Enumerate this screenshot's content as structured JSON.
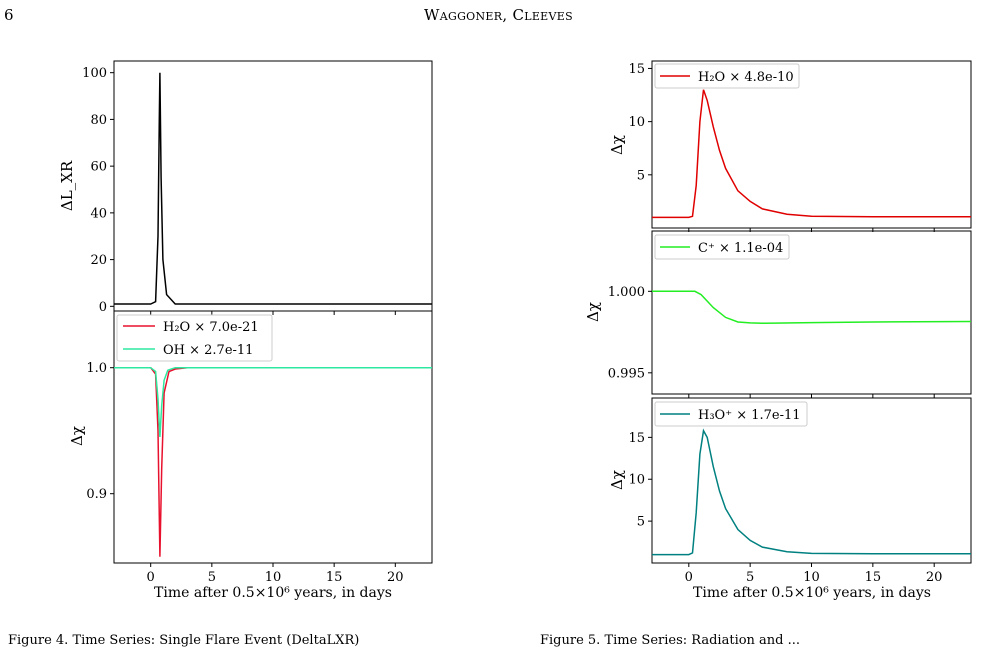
{
  "header": {
    "page_number": "6",
    "running_title": "Waggoner, Cleeves"
  },
  "figure_left": {
    "xlabel": "Time after 0.5×10⁶ years, in days",
    "top": {
      "ylabel": "ΔL_XR",
      "yticks": [
        "0",
        "20",
        "40",
        "60",
        "80",
        "100"
      ]
    },
    "bottom": {
      "ylabel": "Δχ",
      "yticks": [
        "0.9",
        "1.0"
      ],
      "legend": [
        "H₂O × 7.0e-21",
        "OH × 2.7e-11"
      ]
    },
    "xticks": [
      "0",
      "5",
      "10",
      "15",
      "20"
    ]
  },
  "figure_right": {
    "xlabel": "Time after 0.5×10⁶ years, in days",
    "xticks": [
      "0",
      "5",
      "10",
      "15",
      "20"
    ],
    "panel1": {
      "ylabel": "Δχ",
      "yticks": [
        "5",
        "10",
        "15"
      ],
      "legend": "H₂O × 4.8e-10"
    },
    "panel2": {
      "ylabel": "Δχ",
      "yticks": [
        "0.995",
        "1.000"
      ],
      "legend": "C⁺ × 1.1e-04"
    },
    "panel3": {
      "ylabel": "Δχ",
      "yticks": [
        "5",
        "10",
        "15"
      ],
      "legend": "H₃O⁺ × 1.7e-11"
    }
  },
  "captions": {
    "left": "Figure 4. Time Series: Single Flare Event (DeltaLXR)",
    "right": "Figure 5. Time Series: Radiation and ..."
  },
  "chart_data": [
    {
      "type": "line",
      "title": "",
      "xlabel": "Time after 0.5×10⁶ years, in days",
      "ylabel": "ΔL_XR",
      "xlim": [
        -3,
        23
      ],
      "ylim": [
        -2,
        105
      ],
      "series": [
        {
          "color": "#000000",
          "x": [
            -3,
            0,
            0.4,
            0.6,
            0.7,
            0.75,
            0.85,
            1.0,
            1.3,
            2,
            5,
            23
          ],
          "y": [
            1,
            1,
            2,
            30,
            80,
            100,
            55,
            20,
            5,
            1,
            1,
            1
          ]
        }
      ]
    },
    {
      "type": "line",
      "xlabel": "Time after 0.5×10⁶ years, in days",
      "ylabel": "Δχ",
      "xlim": [
        -3,
        23
      ],
      "ylim": [
        0.845,
        1.045
      ],
      "series": [
        {
          "name": "H₂O × 7.0e-21",
          "color": "#e8112d",
          "x": [
            -3,
            0,
            0.4,
            0.6,
            0.75,
            0.9,
            1.1,
            1.5,
            2,
            3,
            23
          ],
          "y": [
            1.0,
            1.0,
            0.995,
            0.95,
            0.85,
            0.92,
            0.98,
            0.997,
            0.999,
            1.0,
            1.0
          ]
        },
        {
          "name": "OH × 2.7e-11",
          "color": "#2ee8a0",
          "x": [
            -3,
            0,
            0.4,
            0.6,
            0.75,
            0.9,
            1.1,
            1.4,
            2,
            23
          ],
          "y": [
            1.0,
            1.0,
            0.997,
            0.975,
            0.945,
            0.97,
            0.99,
            0.998,
            1.0,
            1.0
          ]
        }
      ]
    },
    {
      "type": "line",
      "ylabel": "Δχ",
      "xlim": [
        -3,
        23
      ],
      "ylim": [
        0,
        15.7
      ],
      "series": [
        {
          "name": "H₂O × 4.8e-10",
          "color": "#e00000",
          "x": [
            -3,
            0,
            0.3,
            0.6,
            0.9,
            1.2,
            1.5,
            2,
            2.5,
            3,
            4,
            5,
            6,
            8,
            10,
            15,
            23
          ],
          "y": [
            1,
            1,
            1.1,
            4,
            10,
            13,
            12,
            9.5,
            7.3,
            5.6,
            3.5,
            2.5,
            1.8,
            1.3,
            1.1,
            1.05,
            1.05
          ]
        }
      ]
    },
    {
      "type": "line",
      "ylabel": "Δχ",
      "xlim": [
        -3,
        23
      ],
      "ylim": [
        0.9937,
        1.0037
      ],
      "series": [
        {
          "name": "C⁺ × 1.1e-04",
          "color": "#22ee22",
          "x": [
            -3,
            0.5,
            1,
            2,
            3,
            4,
            5,
            6,
            7,
            10,
            15,
            23
          ],
          "y": [
            1.0,
            1.0,
            0.9998,
            0.999,
            0.9984,
            0.99812,
            0.99806,
            0.99804,
            0.99805,
            0.99808,
            0.99812,
            0.99815
          ]
        }
      ]
    },
    {
      "type": "line",
      "xlabel": "Time after 0.5×10⁶ years, in days",
      "ylabel": "Δχ",
      "xlim": [
        -3,
        23
      ],
      "ylim": [
        0,
        19.7
      ],
      "series": [
        {
          "name": "H₃O⁺ × 1.7e-11",
          "color": "#008080",
          "x": [
            -3,
            0,
            0.3,
            0.6,
            0.9,
            1.2,
            1.5,
            2,
            2.5,
            3,
            4,
            5,
            6,
            8,
            10,
            15,
            23
          ],
          "y": [
            1,
            1,
            1.2,
            6,
            13,
            15.8,
            15,
            11.5,
            8.6,
            6.5,
            4,
            2.7,
            1.9,
            1.35,
            1.15,
            1.1,
            1.1
          ]
        }
      ]
    }
  ]
}
